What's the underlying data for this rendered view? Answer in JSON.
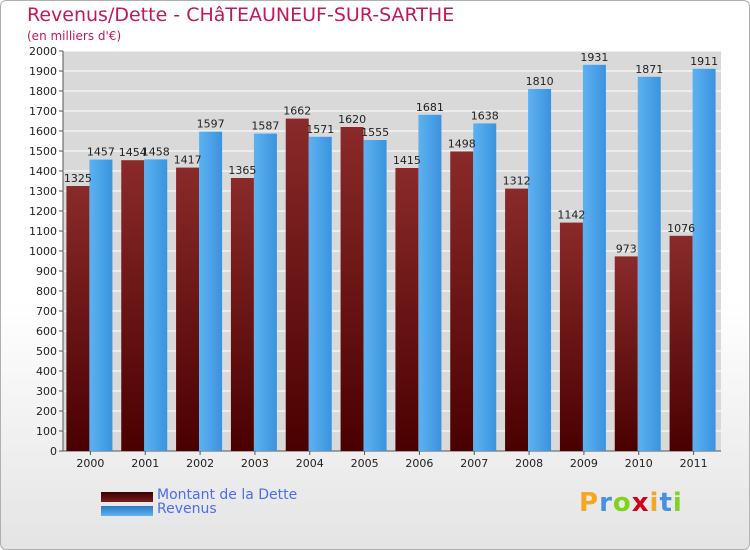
{
  "header": {
    "title": "Revenus/Dette - CHâTEAUNEUF-SUR-SARTHE",
    "subtitle": "(en milliers d'€)"
  },
  "chart_data": {
    "type": "bar",
    "title": "Revenus/Dette - CHâTEAUNEUF-SUR-SARTHE",
    "subtitle": "(en milliers d'€)",
    "categories": [
      "2000",
      "2001",
      "2002",
      "2003",
      "2004",
      "2005",
      "2006",
      "2007",
      "2008",
      "2009",
      "2010",
      "2011"
    ],
    "series": [
      {
        "name": "Montant de la Dette",
        "color": "#7a1e1e",
        "values": [
          1325,
          1454,
          1417,
          1365,
          1662,
          1620,
          1415,
          1498,
          1312,
          1142,
          973,
          1076
        ]
      },
      {
        "name": "Revenus",
        "color": "#4aa3e8",
        "values": [
          1457,
          1458,
          1597,
          1587,
          1571,
          1555,
          1681,
          1638,
          1810,
          1931,
          1871,
          1911
        ]
      }
    ],
    "yticks": [
      "0",
      "100",
      "200",
      "300",
      "400",
      "500",
      "600",
      "700",
      "800",
      "900",
      "1000",
      "1100",
      "1200",
      "1300",
      "1400",
      "1500",
      "1600",
      "1700",
      "1800",
      "1900",
      "2000"
    ],
    "ylim": [
      0,
      2000
    ],
    "grid": true,
    "legend_position": "bottom-left"
  },
  "logo": {
    "letters": [
      "P",
      "r",
      "o",
      "x",
      "i",
      "t",
      "i"
    ],
    "colors": [
      "#f5a623",
      "#4a90e2",
      "#7ed321",
      "#d0021b",
      "#f5a623",
      "#4a90e2",
      "#7ed321"
    ]
  }
}
